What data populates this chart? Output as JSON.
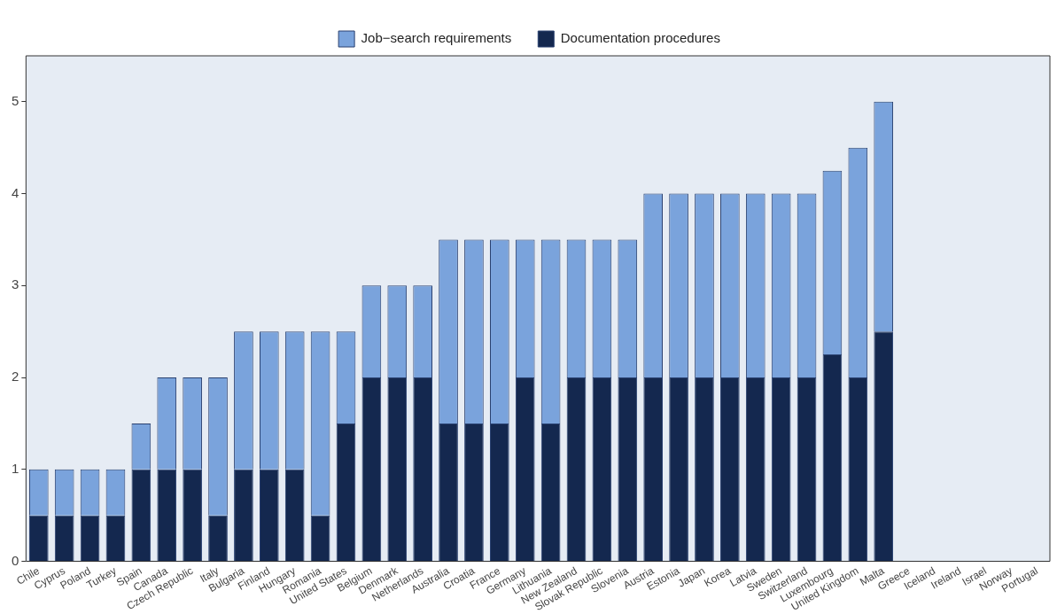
{
  "chart_data": {
    "type": "bar",
    "stacked": true,
    "legend": "top",
    "grid": false,
    "categories": [
      "Chile",
      "Cyprus",
      "Poland",
      "Turkey",
      "Spain",
      "Canada",
      "Czech Republic",
      "Italy",
      "Bulgaria",
      "Finland",
      "Hungary",
      "Romania",
      "United States",
      "Belgium",
      "Denmark",
      "Netherlands",
      "Australia",
      "Croatia",
      "France",
      "Germany",
      "Lithuania",
      "New Zealand",
      "Slovak Republic",
      "Slovenia",
      "Austria",
      "Estonia",
      "Japan",
      "Korea",
      "Latvia",
      "Sweden",
      "Switzerland",
      "Luxembourg",
      "United Kingdom",
      "Malta",
      "Greece",
      "Iceland",
      "Ireland",
      "Israel",
      "Norway",
      "Portugal"
    ],
    "series": [
      {
        "name": "Documentation procedures",
        "color": "#14284f",
        "values": [
          0.5,
          0.5,
          0.5,
          0.5,
          1,
          1,
          1,
          0.5,
          1,
          1,
          1,
          0.5,
          1.5,
          2,
          2,
          2,
          1.5,
          1.5,
          1.5,
          2,
          1.5,
          2,
          2,
          2,
          2,
          2,
          2,
          2,
          2,
          2,
          2,
          2.25,
          2,
          2.5,
          0,
          0,
          0,
          0,
          0,
          0
        ]
      },
      {
        "name": "Job−search requirements",
        "color": "#7aa3dc",
        "values": [
          0.5,
          0.5,
          0.5,
          0.5,
          0.5,
          1,
          1,
          1.5,
          1.5,
          1.5,
          1.5,
          2,
          1,
          1,
          1,
          1,
          2,
          2,
          2,
          1.5,
          2,
          1.5,
          1.5,
          1.5,
          2,
          2,
          2,
          2,
          2,
          2,
          2,
          2,
          2.5,
          2.5,
          0,
          0,
          0,
          0,
          0,
          0
        ]
      }
    ],
    "ylim": [
      0,
      5.5
    ],
    "yticks": [
      0,
      1,
      2,
      3,
      4,
      5
    ]
  }
}
